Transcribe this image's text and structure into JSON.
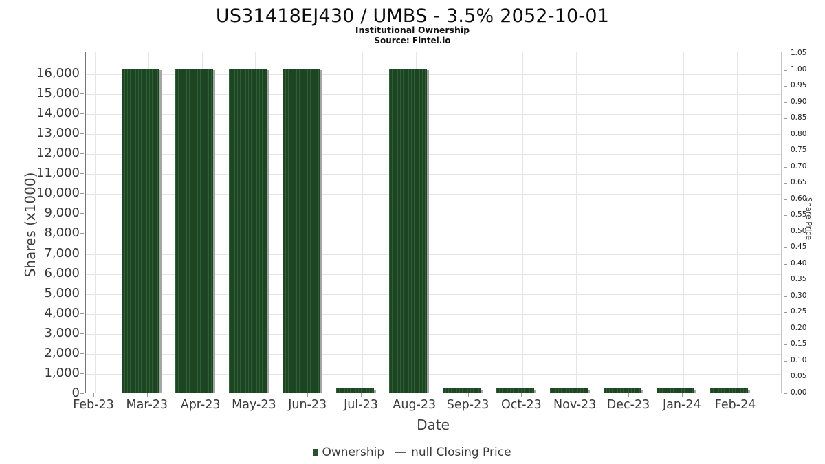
{
  "header": {
    "title": "US31418EJ430 / UMBS - 3.5% 2052-10-01",
    "subtitle": "Institutional Ownership",
    "source": "Source: Fintel.io"
  },
  "chart_data": {
    "type": "bar",
    "title": "US31418EJ430 / UMBS - 3.5% 2052-10-01",
    "subtitle": "Institutional Ownership",
    "source": "Source: Fintel.io",
    "xlabel": "Date",
    "categories": [
      "Feb-23",
      "Mar-23",
      "Apr-23",
      "May-23",
      "Jun-23",
      "Jul-23",
      "Aug-23",
      "Sep-23",
      "Oct-23",
      "Nov-23",
      "Dec-23",
      "Jan-24",
      "Feb-24"
    ],
    "series": [
      {
        "name": "Ownership",
        "values": [
          null,
          16200,
          16200,
          16200,
          16200,
          200,
          16200,
          200,
          200,
          200,
          200,
          200,
          200
        ],
        "color": "#1e4523"
      },
      {
        "name": "null Closing Price",
        "values": [],
        "color": "#5a5a5a"
      }
    ],
    "left_axis": {
      "label": "Shares (x1000)",
      "ticks": [
        0,
        1000,
        2000,
        3000,
        4000,
        5000,
        6000,
        7000,
        8000,
        9000,
        10000,
        11000,
        12000,
        13000,
        14000,
        15000,
        16000
      ],
      "range": [
        0,
        17100
      ]
    },
    "right_axis": {
      "label": "Share Price",
      "ticks": [
        0.0,
        0.05,
        0.1,
        0.15,
        0.2,
        0.25,
        0.3,
        0.35,
        0.4,
        0.45,
        0.5,
        0.55,
        0.6,
        0.65,
        0.7,
        0.75,
        0.8,
        0.85,
        0.9,
        0.95,
        1.0,
        1.05
      ],
      "range": [
        0,
        1.057
      ]
    },
    "grid": true,
    "legend_position": "bottom"
  },
  "legend": {
    "ownership_label": "Ownership",
    "price_label": "null Closing Price"
  },
  "colors": {
    "bar_fill": "#1e4523",
    "bar_stripe": "#2e5f35",
    "bar_shadow": "#a5a5a5",
    "gridline": "#e4e4e4",
    "legend_marker": "#29522e"
  }
}
